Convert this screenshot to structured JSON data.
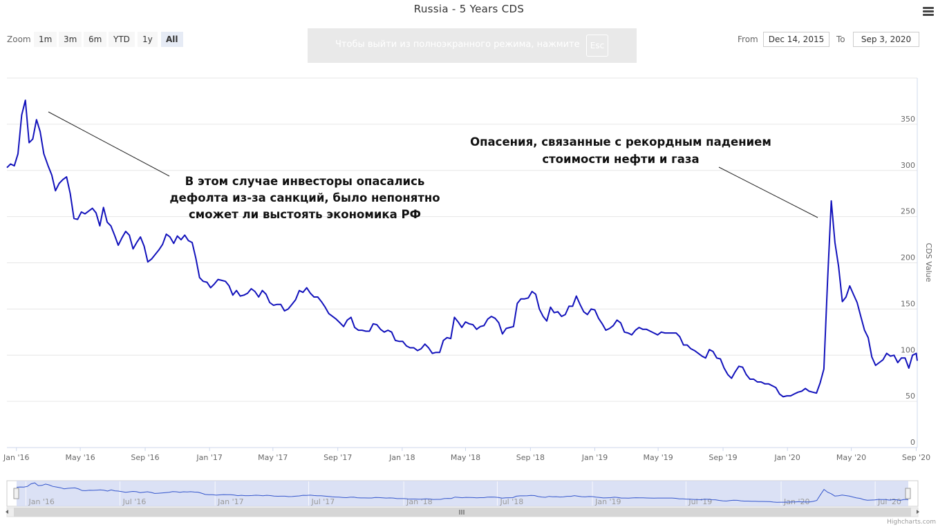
{
  "title": "Russia - 5 Years CDS",
  "zoom": {
    "label": "Zoom",
    "buttons": [
      "1m",
      "3m",
      "6m",
      "YTD",
      "1y",
      "All"
    ],
    "active": "All"
  },
  "fullscreen_notice": {
    "text": "Чтобы выйти из полноэкранного режима, нажмите",
    "key": "Esc"
  },
  "range": {
    "from_label": "From",
    "from_value": "Dec 14, 2015",
    "to_label": "To",
    "to_value": "Sep 3, 2020"
  },
  "credit": "Highcharts.com",
  "colors": {
    "line": "#1111bb",
    "navigator_fill": "#d2d9f2",
    "navigator_line": "#3355cc"
  },
  "icons": {
    "menu": "hamburger-menu-icon"
  },
  "chart_data": {
    "type": "line",
    "title": "Russia - 5 Years CDS",
    "ylabel": "CDS Value",
    "ylim": [
      0,
      400
    ],
    "yticks": [
      0,
      50,
      100,
      150,
      200,
      250,
      300,
      350
    ],
    "xrange": [
      "2015-12-14",
      "2020-09-03"
    ],
    "xticks": [
      {
        "date": "2016-01-01",
        "label": "Jan '16"
      },
      {
        "date": "2016-05-01",
        "label": "May '16"
      },
      {
        "date": "2016-09-01",
        "label": "Sep '16"
      },
      {
        "date": "2017-01-01",
        "label": "Jan '17"
      },
      {
        "date": "2017-05-01",
        "label": "May '17"
      },
      {
        "date": "2017-09-01",
        "label": "Sep '17"
      },
      {
        "date": "2018-01-01",
        "label": "Jan '18"
      },
      {
        "date": "2018-05-01",
        "label": "May '18"
      },
      {
        "date": "2018-09-01",
        "label": "Sep '18"
      },
      {
        "date": "2019-01-01",
        "label": "Jan '19"
      },
      {
        "date": "2019-05-01",
        "label": "May '19"
      },
      {
        "date": "2019-09-01",
        "label": "Sep '19"
      },
      {
        "date": "2020-01-01",
        "label": "Jan '20"
      },
      {
        "date": "2020-05-01",
        "label": "May '20"
      },
      {
        "date": "2020-09-01",
        "label": "Sep '20"
      }
    ],
    "navigator_xticks": [
      {
        "date": "2016-01-01",
        "label": "Jan '16"
      },
      {
        "date": "2016-07-01",
        "label": "Jul '16"
      },
      {
        "date": "2017-01-01",
        "label": "Jan '17"
      },
      {
        "date": "2017-07-01",
        "label": "Jul '17"
      },
      {
        "date": "2018-01-01",
        "label": "Jan '18"
      },
      {
        "date": "2018-07-01",
        "label": "Jul '18"
      },
      {
        "date": "2019-01-01",
        "label": "Jan '19"
      },
      {
        "date": "2019-07-01",
        "label": "Jul '19"
      },
      {
        "date": "2020-01-01",
        "label": "Jan '20"
      },
      {
        "date": "2020-07-01",
        "label": "Jul '20"
      }
    ],
    "series": [
      {
        "points": [
          [
            "2015-12-14",
            303
          ],
          [
            "2015-12-21",
            307
          ],
          [
            "2015-12-28",
            305
          ],
          [
            "2016-01-04",
            318
          ],
          [
            "2016-01-11",
            360
          ],
          [
            "2016-01-18",
            376
          ],
          [
            "2016-01-25",
            330
          ],
          [
            "2016-02-01",
            334
          ],
          [
            "2016-02-08",
            355
          ],
          [
            "2016-02-15",
            342
          ],
          [
            "2016-02-22",
            318
          ],
          [
            "2016-03-01",
            305
          ],
          [
            "2016-03-08",
            295
          ],
          [
            "2016-03-15",
            278
          ],
          [
            "2016-03-22",
            286
          ],
          [
            "2016-03-29",
            290
          ],
          [
            "2016-04-05",
            293
          ],
          [
            "2016-04-12",
            275
          ],
          [
            "2016-04-19",
            248
          ],
          [
            "2016-04-26",
            247
          ],
          [
            "2016-05-03",
            255
          ],
          [
            "2016-05-10",
            253
          ],
          [
            "2016-05-17",
            256
          ],
          [
            "2016-05-24",
            259
          ],
          [
            "2016-05-31",
            254
          ],
          [
            "2016-06-07",
            240
          ],
          [
            "2016-06-14",
            260
          ],
          [
            "2016-06-21",
            244
          ],
          [
            "2016-06-28",
            240
          ],
          [
            "2016-07-05",
            230
          ],
          [
            "2016-07-12",
            219
          ],
          [
            "2016-07-19",
            227
          ],
          [
            "2016-07-26",
            234
          ],
          [
            "2016-08-02",
            230
          ],
          [
            "2016-08-09",
            215
          ],
          [
            "2016-08-16",
            222
          ],
          [
            "2016-08-23",
            228
          ],
          [
            "2016-08-30",
            218
          ],
          [
            "2016-09-06",
            201
          ],
          [
            "2016-09-13",
            204
          ],
          [
            "2016-09-20",
            209
          ],
          [
            "2016-09-27",
            214
          ],
          [
            "2016-10-04",
            220
          ],
          [
            "2016-10-11",
            231
          ],
          [
            "2016-10-18",
            228
          ],
          [
            "2016-10-25",
            221
          ],
          [
            "2016-11-01",
            229
          ],
          [
            "2016-11-08",
            225
          ],
          [
            "2016-11-15",
            230
          ],
          [
            "2016-11-22",
            224
          ],
          [
            "2016-11-29",
            222
          ],
          [
            "2016-12-06",
            205
          ],
          [
            "2016-12-13",
            184
          ],
          [
            "2016-12-20",
            180
          ],
          [
            "2016-12-27",
            179
          ],
          [
            "2017-01-03",
            173
          ],
          [
            "2017-01-10",
            177
          ],
          [
            "2017-01-17",
            182
          ],
          [
            "2017-01-24",
            181
          ],
          [
            "2017-01-31",
            180
          ],
          [
            "2017-02-07",
            175
          ],
          [
            "2017-02-14",
            165
          ],
          [
            "2017-02-21",
            170
          ],
          [
            "2017-02-28",
            164
          ],
          [
            "2017-03-07",
            165
          ],
          [
            "2017-03-14",
            167
          ],
          [
            "2017-03-21",
            172
          ],
          [
            "2017-03-28",
            169
          ],
          [
            "2017-04-04",
            163
          ],
          [
            "2017-04-11",
            170
          ],
          [
            "2017-04-18",
            166
          ],
          [
            "2017-04-25",
            157
          ],
          [
            "2017-05-02",
            154
          ],
          [
            "2017-05-09",
            155
          ],
          [
            "2017-05-16",
            155
          ],
          [
            "2017-05-23",
            148
          ],
          [
            "2017-05-30",
            150
          ],
          [
            "2017-06-06",
            155
          ],
          [
            "2017-06-13",
            160
          ],
          [
            "2017-06-20",
            170
          ],
          [
            "2017-06-27",
            168
          ],
          [
            "2017-07-04",
            173
          ],
          [
            "2017-07-11",
            167
          ],
          [
            "2017-07-18",
            163
          ],
          [
            "2017-07-25",
            163
          ],
          [
            "2017-08-01",
            158
          ],
          [
            "2017-08-08",
            152
          ],
          [
            "2017-08-15",
            145
          ],
          [
            "2017-08-22",
            142
          ],
          [
            "2017-08-29",
            139
          ],
          [
            "2017-09-05",
            135
          ],
          [
            "2017-09-12",
            131
          ],
          [
            "2017-09-19",
            138
          ],
          [
            "2017-09-26",
            141
          ],
          [
            "2017-10-03",
            130
          ],
          [
            "2017-10-10",
            127
          ],
          [
            "2017-10-17",
            127
          ],
          [
            "2017-10-24",
            126
          ],
          [
            "2017-10-31",
            126
          ],
          [
            "2017-11-07",
            134
          ],
          [
            "2017-11-14",
            133
          ],
          [
            "2017-11-21",
            128
          ],
          [
            "2017-11-28",
            125
          ],
          [
            "2017-12-05",
            127
          ],
          [
            "2017-12-12",
            125
          ],
          [
            "2017-12-19",
            116
          ],
          [
            "2017-12-26",
            115
          ],
          [
            "2018-01-02",
            115
          ],
          [
            "2018-01-09",
            110
          ],
          [
            "2018-01-16",
            108
          ],
          [
            "2018-01-23",
            108
          ],
          [
            "2018-01-30",
            105
          ],
          [
            "2018-02-06",
            107
          ],
          [
            "2018-02-13",
            112
          ],
          [
            "2018-02-20",
            108
          ],
          [
            "2018-02-27",
            102
          ],
          [
            "2018-03-06",
            103
          ],
          [
            "2018-03-13",
            103
          ],
          [
            "2018-03-20",
            116
          ],
          [
            "2018-03-27",
            119
          ],
          [
            "2018-04-03",
            118
          ],
          [
            "2018-04-10",
            141
          ],
          [
            "2018-04-17",
            136
          ],
          [
            "2018-04-24",
            130
          ],
          [
            "2018-05-01",
            136
          ],
          [
            "2018-05-08",
            134
          ],
          [
            "2018-05-15",
            133
          ],
          [
            "2018-05-22",
            128
          ],
          [
            "2018-05-29",
            131
          ],
          [
            "2018-06-05",
            132
          ],
          [
            "2018-06-12",
            139
          ],
          [
            "2018-06-19",
            142
          ],
          [
            "2018-06-26",
            140
          ],
          [
            "2018-07-03",
            135
          ],
          [
            "2018-07-10",
            123
          ],
          [
            "2018-07-17",
            129
          ],
          [
            "2018-07-24",
            130
          ],
          [
            "2018-07-31",
            131
          ],
          [
            "2018-08-07",
            156
          ],
          [
            "2018-08-14",
            161
          ],
          [
            "2018-08-21",
            161
          ],
          [
            "2018-08-28",
            162
          ],
          [
            "2018-09-04",
            169
          ],
          [
            "2018-09-11",
            166
          ],
          [
            "2018-09-18",
            150
          ],
          [
            "2018-09-25",
            142
          ],
          [
            "2018-10-02",
            137
          ],
          [
            "2018-10-09",
            152
          ],
          [
            "2018-10-16",
            146
          ],
          [
            "2018-10-23",
            147
          ],
          [
            "2018-10-30",
            142
          ],
          [
            "2018-11-06",
            144
          ],
          [
            "2018-11-13",
            153
          ],
          [
            "2018-11-20",
            153
          ],
          [
            "2018-11-27",
            164
          ],
          [
            "2018-12-04",
            155
          ],
          [
            "2018-12-11",
            147
          ],
          [
            "2018-12-18",
            144
          ],
          [
            "2018-12-25",
            150
          ],
          [
            "2019-01-01",
            149
          ],
          [
            "2019-01-08",
            140
          ],
          [
            "2019-01-15",
            134
          ],
          [
            "2019-01-22",
            127
          ],
          [
            "2019-01-29",
            129
          ],
          [
            "2019-02-05",
            132
          ],
          [
            "2019-02-12",
            138
          ],
          [
            "2019-02-19",
            135
          ],
          [
            "2019-02-26",
            125
          ],
          [
            "2019-03-05",
            124
          ],
          [
            "2019-03-12",
            122
          ],
          [
            "2019-03-19",
            127
          ],
          [
            "2019-03-26",
            130
          ],
          [
            "2019-04-02",
            128
          ],
          [
            "2019-04-09",
            128
          ],
          [
            "2019-04-16",
            126
          ],
          [
            "2019-04-23",
            124
          ],
          [
            "2019-04-30",
            122
          ],
          [
            "2019-05-07",
            125
          ],
          [
            "2019-05-14",
            124
          ],
          [
            "2019-05-21",
            124
          ],
          [
            "2019-05-28",
            124
          ],
          [
            "2019-06-04",
            124
          ],
          [
            "2019-06-11",
            120
          ],
          [
            "2019-06-18",
            111
          ],
          [
            "2019-06-25",
            111
          ],
          [
            "2019-07-02",
            107
          ],
          [
            "2019-07-09",
            105
          ],
          [
            "2019-07-16",
            102
          ],
          [
            "2019-07-23",
            99
          ],
          [
            "2019-07-30",
            97
          ],
          [
            "2019-08-06",
            106
          ],
          [
            "2019-08-13",
            104
          ],
          [
            "2019-08-20",
            97
          ],
          [
            "2019-08-27",
            96
          ],
          [
            "2019-09-03",
            86
          ],
          [
            "2019-09-10",
            79
          ],
          [
            "2019-09-17",
            75
          ],
          [
            "2019-09-24",
            82
          ],
          [
            "2019-10-01",
            88
          ],
          [
            "2019-10-08",
            87
          ],
          [
            "2019-10-15",
            79
          ],
          [
            "2019-10-22",
            74
          ],
          [
            "2019-10-29",
            74
          ],
          [
            "2019-11-05",
            71
          ],
          [
            "2019-11-12",
            71
          ],
          [
            "2019-11-19",
            69
          ],
          [
            "2019-11-26",
            69
          ],
          [
            "2019-12-03",
            67
          ],
          [
            "2019-12-10",
            65
          ],
          [
            "2019-12-17",
            58
          ],
          [
            "2019-12-24",
            55
          ],
          [
            "2019-12-31",
            56
          ],
          [
            "2020-01-07",
            56
          ],
          [
            "2020-01-14",
            58
          ],
          [
            "2020-01-21",
            60
          ],
          [
            "2020-01-28",
            61
          ],
          [
            "2020-02-04",
            64
          ],
          [
            "2020-02-11",
            61
          ],
          [
            "2020-02-18",
            60
          ],
          [
            "2020-02-25",
            59
          ],
          [
            "2020-03-03",
            70
          ],
          [
            "2020-03-10",
            85
          ],
          [
            "2020-03-17",
            180
          ],
          [
            "2020-03-24",
            267
          ],
          [
            "2020-03-31",
            222
          ],
          [
            "2020-04-07",
            196
          ],
          [
            "2020-04-14",
            158
          ],
          [
            "2020-04-21",
            163
          ],
          [
            "2020-04-28",
            175
          ],
          [
            "2020-05-05",
            166
          ],
          [
            "2020-05-12",
            157
          ],
          [
            "2020-05-19",
            142
          ],
          [
            "2020-05-26",
            127
          ],
          [
            "2020-06-02",
            119
          ],
          [
            "2020-06-09",
            98
          ],
          [
            "2020-06-16",
            89
          ],
          [
            "2020-06-23",
            92
          ],
          [
            "2020-06-30",
            95
          ],
          [
            "2020-07-07",
            102
          ],
          [
            "2020-07-14",
            99
          ],
          [
            "2020-07-21",
            100
          ],
          [
            "2020-07-28",
            92
          ],
          [
            "2020-08-04",
            97
          ],
          [
            "2020-08-11",
            97
          ],
          [
            "2020-08-18",
            86
          ],
          [
            "2020-08-25",
            100
          ],
          [
            "2020-09-01",
            102
          ],
          [
            "2020-09-03",
            94
          ]
        ]
      }
    ],
    "annotations": [
      {
        "lines": [
          "В этом случае инвесторы опасались",
          "дефолта из-за санкций, было непонятно",
          "сможет ли выстоять экономика РФ"
        ]
      },
      {
        "lines": [
          "Опасения, связанные с рекордным падением",
          "стоимости нефти и газа"
        ]
      }
    ]
  }
}
